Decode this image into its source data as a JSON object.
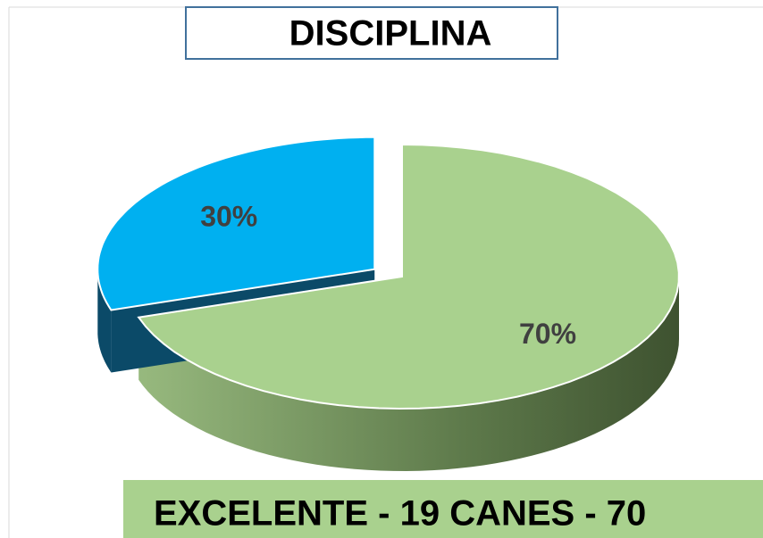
{
  "chart_data": {
    "type": "pie",
    "title": "DISCIPLINA",
    "values": [
      70,
      30
    ],
    "value_labels": [
      "70%",
      "30%"
    ],
    "colors": [
      "#a9d18e",
      "#00b0f0"
    ],
    "caption": "EXCELENTE - 19 CANES - 70"
  }
}
